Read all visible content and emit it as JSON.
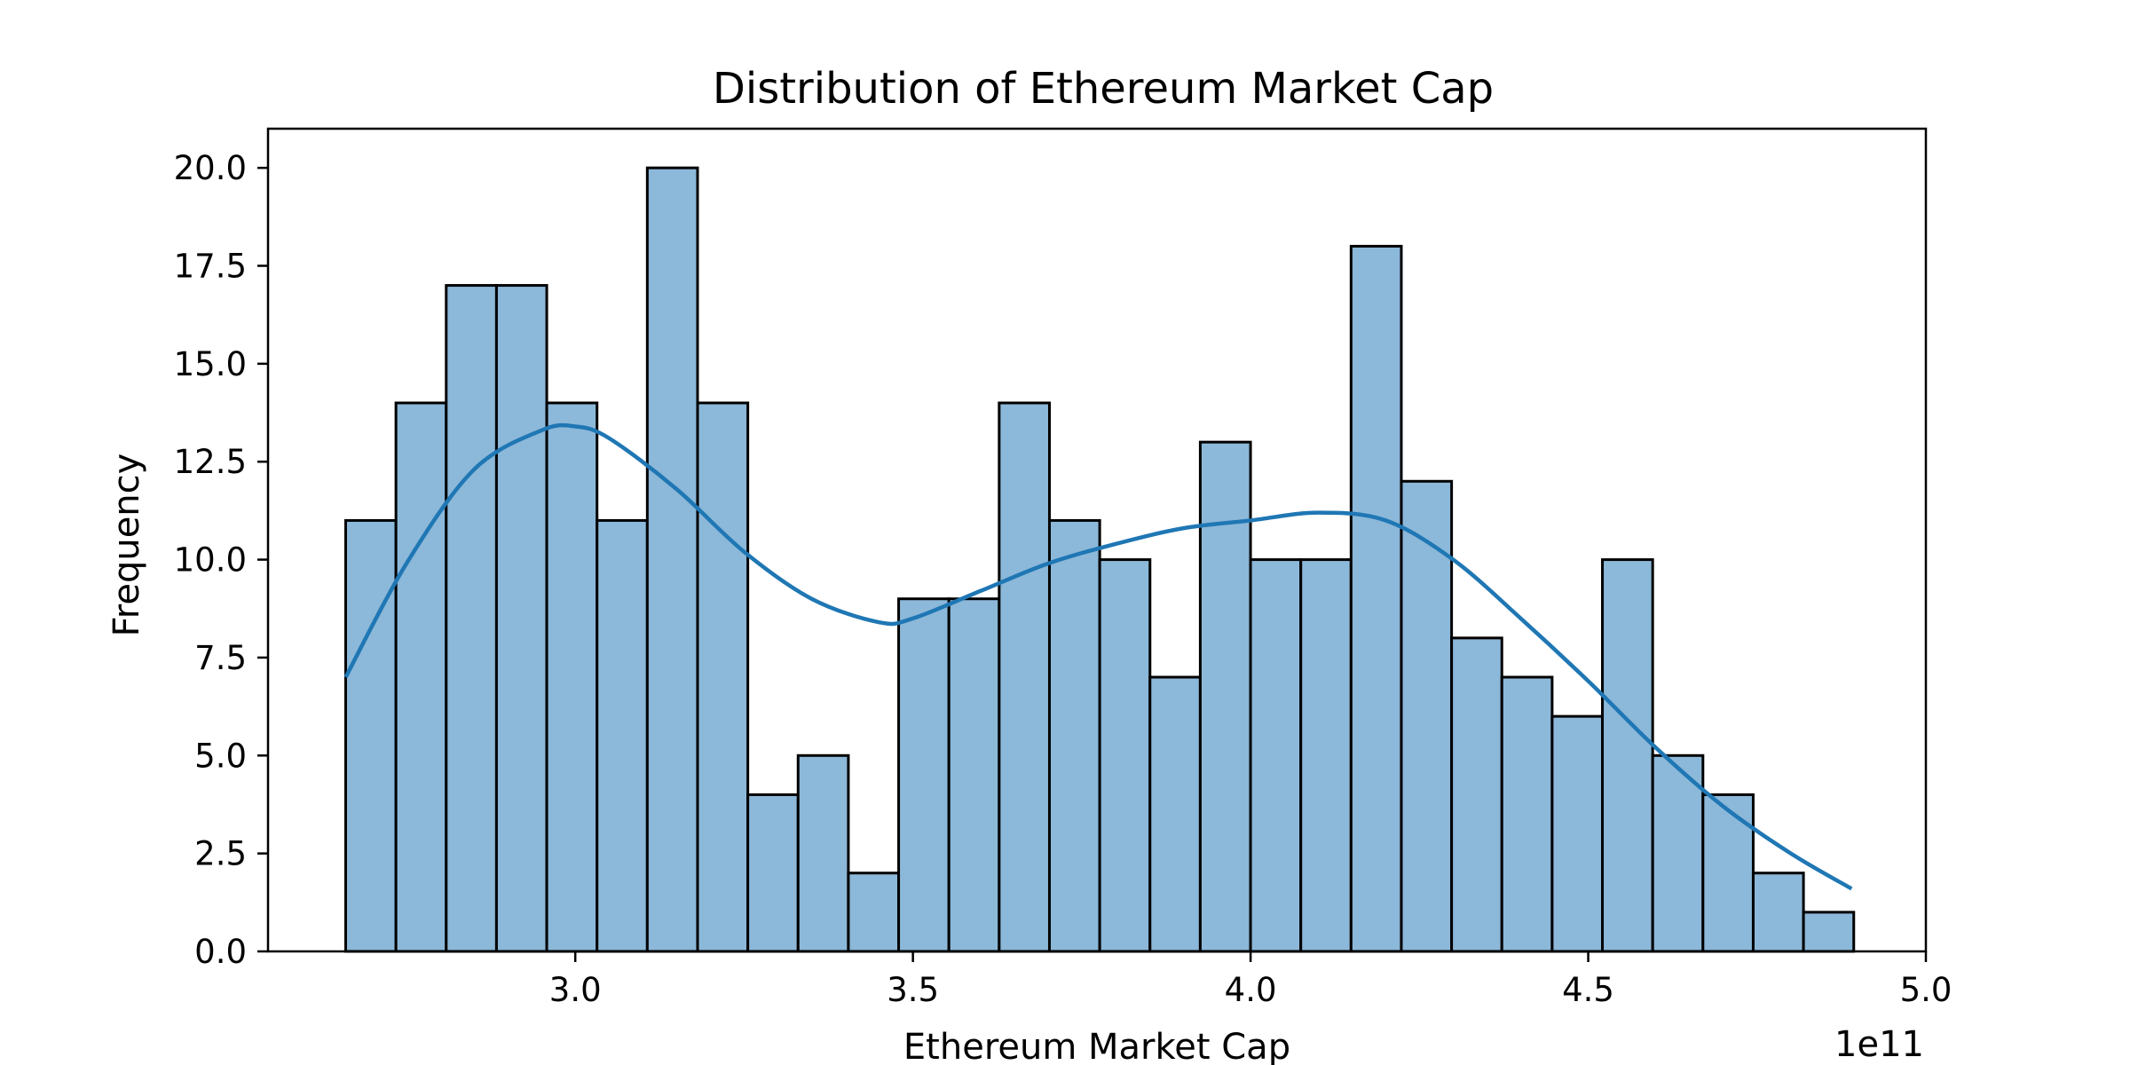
{
  "chart_data": {
    "type": "bar",
    "subtype": "histogram_with_kde",
    "title": "Distribution of Ethereum Market Cap",
    "xlabel": "Ethereum Market Cap",
    "ylabel": "Frequency",
    "x_offset_label": "1e11",
    "xlim": [
      2.545,
      5.0
    ],
    "ylim": [
      0,
      21
    ],
    "x_ticks": [
      3.0,
      3.5,
      4.0,
      4.5,
      5.0
    ],
    "x_tick_labels": [
      "3.0",
      "3.5",
      "4.0",
      "4.5",
      "5.0"
    ],
    "y_ticks": [
      0,
      2.5,
      5,
      7.5,
      10,
      12.5,
      15,
      17.5,
      20
    ],
    "y_tick_labels": [
      "0.0",
      "2.5",
      "5.0",
      "7.5",
      "10.0",
      "12.5",
      "15.0",
      "17.5",
      "20.0"
    ],
    "bin_start": 2.66,
    "bin_width": 0.07444,
    "values": [
      11,
      14,
      17,
      17,
      14,
      11,
      20,
      14,
      4,
      5,
      2,
      9,
      9,
      14,
      11,
      10,
      7,
      13,
      10,
      10,
      18,
      12,
      8,
      7,
      6,
      10,
      5,
      4,
      2,
      1
    ],
    "kde": {
      "x": [
        2.66,
        2.75,
        2.85,
        2.95,
        3.0,
        3.05,
        3.15,
        3.25,
        3.35,
        3.45,
        3.5,
        3.6,
        3.7,
        3.8,
        3.9,
        4.0,
        4.1,
        4.2,
        4.3,
        4.4,
        4.5,
        4.6,
        4.7,
        4.8,
        4.89
      ],
      "y": [
        7.0,
        9.9,
        12.3,
        13.3,
        13.4,
        13.1,
        11.8,
        10.2,
        9.0,
        8.4,
        8.5,
        9.2,
        9.9,
        10.4,
        10.8,
        11.0,
        11.2,
        11.0,
        10.0,
        8.5,
        6.9,
        5.2,
        3.7,
        2.5,
        1.6
      ]
    },
    "grid": false,
    "colors": {
      "bar_fill": "#8cb8d9",
      "bar_edge": "#000000",
      "kde_line": "#1f77b4",
      "axes": "#000000",
      "background": "#ffffff"
    }
  }
}
